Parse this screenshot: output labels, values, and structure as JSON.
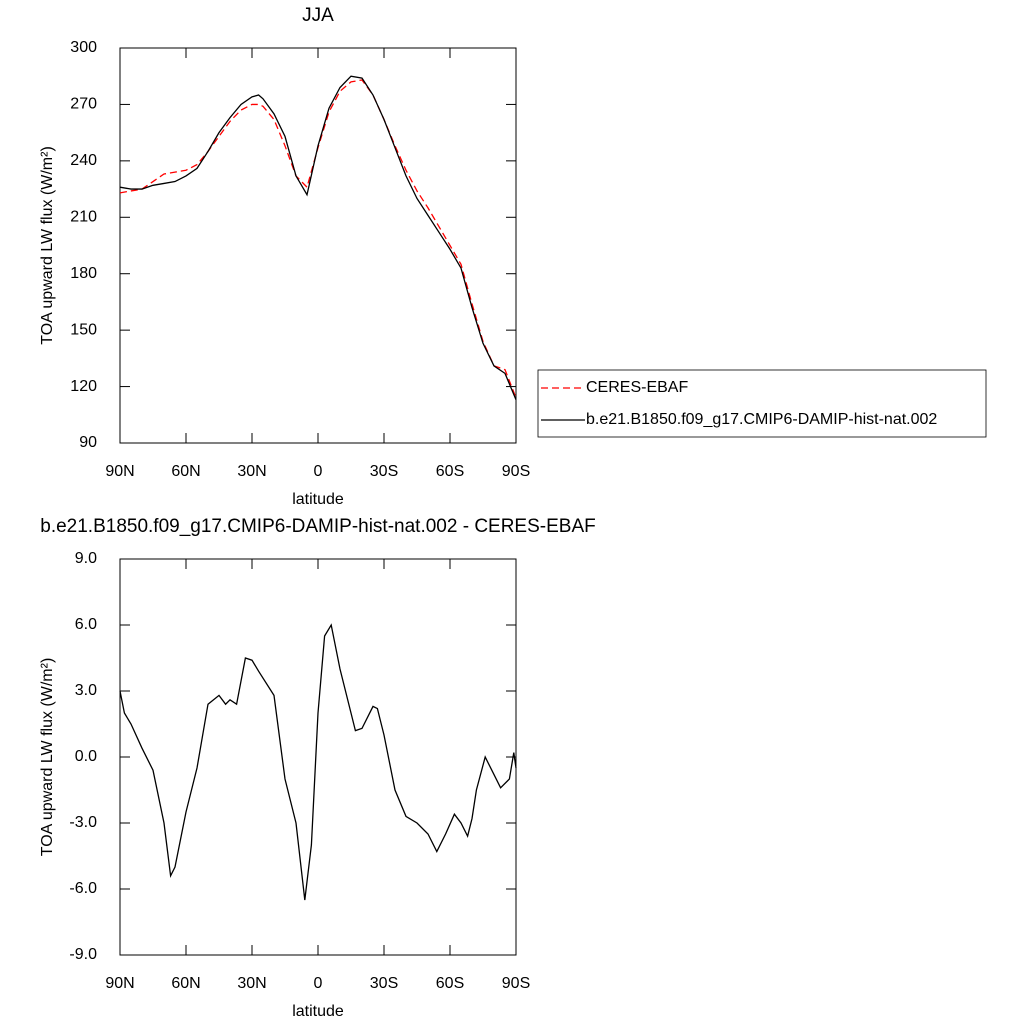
{
  "chart_data": [
    {
      "type": "line",
      "title": "JJA",
      "xlabel": "latitude",
      "ylabel": "TOA upward LW flux (W/m²)",
      "x": [
        90,
        85,
        80,
        75,
        70,
        65,
        60,
        55,
        50,
        45,
        40,
        35,
        30,
        27,
        25,
        20,
        15,
        10,
        5,
        0,
        -5,
        -10,
        -15,
        -20,
        -25,
        -30,
        -35,
        -40,
        -45,
        -50,
        -55,
        -60,
        -65,
        -70,
        -75,
        -80,
        -85,
        -90
      ],
      "series": [
        {
          "name": "CERES-EBAF",
          "color": "#ff0000",
          "line_style": "dashed",
          "values": [
            223,
            224,
            225,
            229,
            233,
            234,
            235,
            238,
            245,
            253,
            261,
            267,
            270,
            270,
            269,
            262,
            248,
            232,
            226,
            247,
            266,
            277,
            282,
            283,
            275,
            262,
            248,
            235,
            224,
            215,
            205,
            195,
            185,
            164,
            144,
            131,
            129,
            114
          ]
        },
        {
          "name": "b.e21.B1850.f09_g17.CMIP6-DAMIP-hist-nat.002",
          "color": "#000000",
          "line_style": "solid",
          "values": [
            226,
            225,
            225,
            227,
            228,
            229,
            232,
            236,
            245,
            255,
            263,
            270,
            274,
            275,
            273,
            265,
            253,
            232,
            222,
            248,
            268,
            279,
            285,
            284,
            275,
            262,
            247,
            232,
            220,
            211,
            202,
            193,
            183,
            162,
            143,
            131,
            127,
            113
          ]
        }
      ],
      "xlim": [
        90,
        -90
      ],
      "xticks": [
        {
          "value": 90,
          "label": "90N"
        },
        {
          "value": 60,
          "label": "60N"
        },
        {
          "value": 30,
          "label": "30N"
        },
        0,
        {
          "value": -30,
          "label": "30S"
        },
        {
          "value": -60,
          "label": "60S"
        },
        {
          "value": -90,
          "label": "90S"
        }
      ],
      "ylim": [
        90,
        300
      ],
      "yticks": [
        90,
        120,
        150,
        180,
        210,
        240,
        270,
        300
      ],
      "legend": "outside-right"
    },
    {
      "type": "line",
      "title": "b.e21.B1850.f09_g17.CMIP6-DAMIP-hist-nat.002 - CERES-EBAF",
      "xlabel": "latitude",
      "ylabel": "TOA upward LW flux (W/m²)",
      "x": [
        90,
        88,
        85,
        80,
        75,
        70,
        67,
        65,
        60,
        55,
        50,
        45,
        42,
        40,
        37,
        33,
        30,
        27,
        20,
        15,
        10,
        6,
        3,
        0,
        -3,
        -6,
        -10,
        -15,
        -17,
        -20,
        -25,
        -27,
        -30,
        -35,
        -40,
        -45,
        -50,
        -54,
        -58,
        -62,
        -65,
        -68,
        -70,
        -72,
        -76,
        -80,
        -83,
        -87,
        -89,
        -90
      ],
      "series": [
        {
          "color": "#000000",
          "line_style": "solid",
          "values": [
            3.0,
            2.0,
            1.5,
            0.4,
            -0.6,
            -3.0,
            -5.4,
            -5.0,
            -2.5,
            -0.5,
            2.4,
            2.8,
            2.4,
            2.6,
            2.4,
            4.5,
            4.4,
            3.9,
            2.8,
            -1.0,
            -3.0,
            -6.5,
            -4.0,
            2.0,
            5.5,
            6.0,
            4.0,
            2.0,
            1.2,
            1.3,
            2.3,
            2.2,
            1.0,
            -1.5,
            -2.7,
            -3.0,
            -3.5,
            -4.3,
            -3.5,
            -2.6,
            -3.0,
            -3.6,
            -2.8,
            -1.5,
            0.0,
            -0.8,
            -1.4,
            -1.0,
            0.2,
            -0.5
          ]
        }
      ],
      "xlim": [
        90,
        -90
      ],
      "xticks": [
        {
          "value": 90,
          "label": "90N"
        },
        {
          "value": 60,
          "label": "60N"
        },
        {
          "value": 30,
          "label": "30N"
        },
        0,
        {
          "value": -30,
          "label": "30S"
        },
        {
          "value": -60,
          "label": "60S"
        },
        {
          "value": -90,
          "label": "90S"
        }
      ],
      "ylim": [
        -9,
        9
      ],
      "yticks": [
        {
          "value": -9,
          "label": "-9.0"
        },
        {
          "value": -6,
          "label": "-6.0"
        },
        {
          "value": -3,
          "label": "-3.0"
        },
        {
          "value": 0,
          "label": "0.0"
        },
        {
          "value": 3,
          "label": "3.0"
        },
        {
          "value": 6,
          "label": "6.0"
        },
        {
          "value": 9,
          "label": "9.0"
        }
      ]
    }
  ]
}
